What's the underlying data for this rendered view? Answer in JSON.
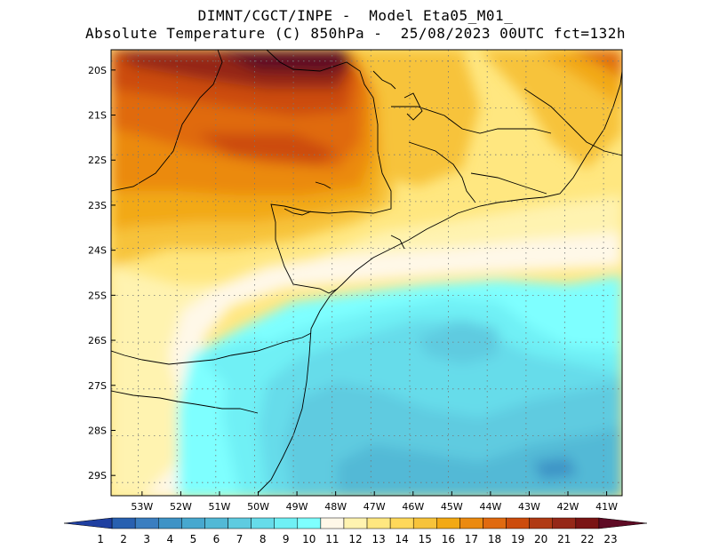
{
  "title": {
    "line1": "DIMNT/CGCT/INPE -  Model Eta05_M01_",
    "line2": "Absolute Temperature (C) 850hPa -  25/08/2023 00UTC fct=132h"
  },
  "map": {
    "lat_labels": [
      "20S",
      "21S",
      "22S",
      "23S",
      "24S",
      "25S",
      "26S",
      "27S",
      "28S",
      "29S"
    ],
    "lon_labels": [
      "53W",
      "52W",
      "51W",
      "50W",
      "49W",
      "48W",
      "47W",
      "46W",
      "45W",
      "44W",
      "43W",
      "42W",
      "41W"
    ],
    "lat_range": [
      -29.45,
      -19.55
    ],
    "lon_range": [
      -53.8,
      -40.6
    ]
  },
  "colorbar": {
    "labels": [
      "1",
      "2",
      "3",
      "4",
      "5",
      "6",
      "7",
      "8",
      "9",
      "10",
      "11",
      "12",
      "13",
      "14",
      "15",
      "16",
      "17",
      "18",
      "19",
      "20",
      "21",
      "22",
      "23"
    ],
    "colors": [
      "#1f3fa0",
      "#2860b0",
      "#3a7ec0",
      "#3e93c6",
      "#47a8cf",
      "#52b9d6",
      "#5ecbe0",
      "#66dcea",
      "#6ff0f5",
      "#7effff",
      "#fff8e8",
      "#fff3b0",
      "#ffe780",
      "#ffd85a",
      "#f7c33a",
      "#f2a914",
      "#eb8a10",
      "#e06a10",
      "#cc4c0c",
      "#b03a14",
      "#952818",
      "#7a1414",
      "#5e0a24"
    ]
  }
}
